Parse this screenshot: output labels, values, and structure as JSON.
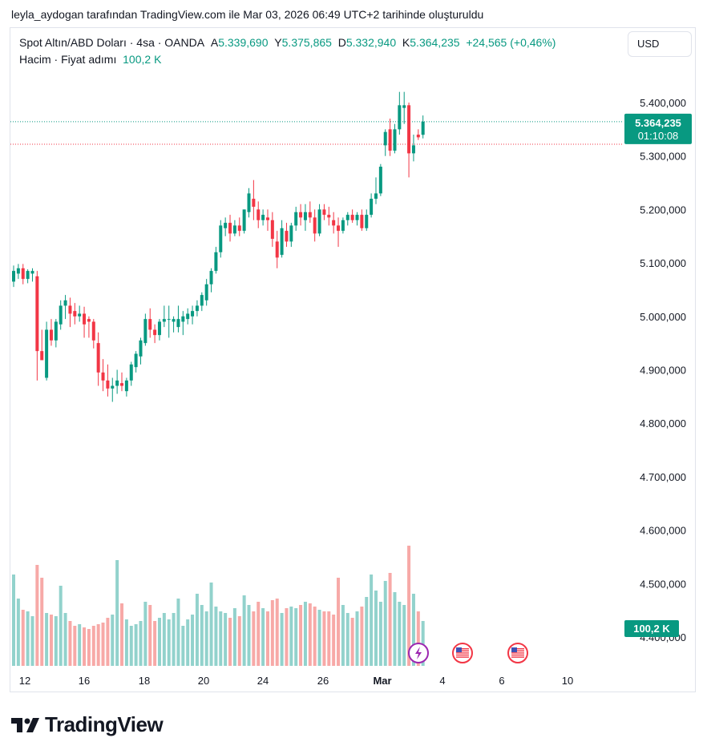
{
  "attribution": "leyla_aydogan tarafından TradingView.com ile Mar 03, 2026 06:49 UTC+2 tarihinde oluşturuldu",
  "legend": {
    "symbol": "Spot Altın/ABD Doları · 4sa · OANDA",
    "open_label": "A",
    "open_value": "5.339,690",
    "high_label": "Y",
    "high_value": "5.375,865",
    "low_label": "D",
    "low_value": "5.332,940",
    "close_label": "K",
    "close_value": "5.364,235",
    "change": "+24,565 (+0,46%)",
    "volume_label": "Hacim · Fiyat adımı",
    "volume_value": "100,2 K"
  },
  "currency_button": "USD",
  "price_tag": {
    "price": "5.364,235",
    "countdown": "01:10:08"
  },
  "volume_tag": "100,2 K",
  "brand": "TradingView",
  "event_icons": [
    "lightning-icon",
    "us-flag-icon",
    "us-flag-icon"
  ],
  "colors": {
    "up": "#089981",
    "down": "#f23645",
    "vol_up": "#92d2cc",
    "vol_down": "#f7a9a7"
  },
  "chart_data": {
    "type": "candlestick",
    "x_tick_labels": [
      "12",
      "16",
      "18",
      "20",
      "24",
      "26",
      "Mar",
      "4",
      "6",
      "10"
    ],
    "y_tick_labels": [
      "5.400,000",
      "5.300,000",
      "5.200,000",
      "5.100,000",
      "5.000,000",
      "4.900,000",
      "4.800,000",
      "4.700,000",
      "4.600,000",
      "4.500,000",
      "4.400,000"
    ],
    "ylim": [
      4350,
      5510
    ],
    "last_price": 5364.235,
    "prior_close_line": 5322,
    "candles": [
      {
        "o": 5065,
        "h": 5095,
        "l": 5055,
        "c": 5085,
        "v": 0.57
      },
      {
        "o": 5080,
        "h": 5098,
        "l": 5070,
        "c": 5090,
        "v": 0.42
      },
      {
        "o": 5090,
        "h": 5098,
        "l": 5060,
        "c": 5070,
        "v": 0.35
      },
      {
        "o": 5070,
        "h": 5088,
        "l": 5062,
        "c": 5085,
        "v": 0.34
      },
      {
        "o": 5080,
        "h": 5090,
        "l": 5065,
        "c": 5085,
        "v": 0.31
      },
      {
        "o": 5075,
        "h": 5085,
        "l": 4880,
        "c": 4935,
        "v": 0.63
      },
      {
        "o": 4935,
        "h": 4975,
        "l": 4918,
        "c": 4918,
        "v": 0.55
      },
      {
        "o": 4885,
        "h": 4990,
        "l": 4880,
        "c": 4975,
        "v": 0.33
      },
      {
        "o": 4975,
        "h": 4995,
        "l": 4945,
        "c": 4955,
        "v": 0.32
      },
      {
        "o": 4955,
        "h": 4995,
        "l": 4942,
        "c": 4990,
        "v": 0.31
      },
      {
        "o": 4985,
        "h": 5030,
        "l": 4975,
        "c": 5020,
        "v": 0.5
      },
      {
        "o": 5020,
        "h": 5040,
        "l": 4995,
        "c": 5030,
        "v": 0.33
      },
      {
        "o": 5020,
        "h": 5035,
        "l": 4980,
        "c": 5005,
        "v": 0.28
      },
      {
        "o": 5010,
        "h": 5025,
        "l": 4985,
        "c": 5000,
        "v": 0.25
      },
      {
        "o": 5000,
        "h": 5020,
        "l": 4990,
        "c": 5005,
        "v": 0.26
      },
      {
        "o": 5005,
        "h": 5018,
        "l": 4960,
        "c": 4985,
        "v": 0.24
      },
      {
        "o": 4995,
        "h": 5000,
        "l": 4960,
        "c": 4990,
        "v": 0.23
      },
      {
        "o": 4990,
        "h": 4995,
        "l": 4940,
        "c": 4955,
        "v": 0.25
      },
      {
        "o": 4950,
        "h": 4970,
        "l": 4870,
        "c": 4895,
        "v": 0.26
      },
      {
        "o": 4895,
        "h": 4920,
        "l": 4860,
        "c": 4880,
        "v": 0.27
      },
      {
        "o": 4880,
        "h": 4910,
        "l": 4850,
        "c": 4865,
        "v": 0.3
      },
      {
        "o": 4865,
        "h": 4885,
        "l": 4840,
        "c": 4870,
        "v": 0.32
      },
      {
        "o": 4870,
        "h": 4900,
        "l": 4855,
        "c": 4880,
        "v": 0.66
      },
      {
        "o": 4875,
        "h": 4895,
        "l": 4860,
        "c": 4870,
        "v": 0.39
      },
      {
        "o": 4860,
        "h": 4885,
        "l": 4850,
        "c": 4880,
        "v": 0.29
      },
      {
        "o": 4880,
        "h": 4915,
        "l": 4870,
        "c": 4910,
        "v": 0.25
      },
      {
        "o": 4905,
        "h": 4935,
        "l": 4895,
        "c": 4930,
        "v": 0.26
      },
      {
        "o": 4925,
        "h": 4960,
        "l": 4910,
        "c": 4955,
        "v": 0.28
      },
      {
        "o": 4950,
        "h": 5005,
        "l": 4945,
        "c": 4995,
        "v": 0.4
      },
      {
        "o": 4995,
        "h": 5015,
        "l": 4960,
        "c": 4975,
        "v": 0.38
      },
      {
        "o": 4975,
        "h": 4985,
        "l": 4950,
        "c": 4965,
        "v": 0.28
      },
      {
        "o": 4965,
        "h": 4995,
        "l": 4955,
        "c": 4990,
        "v": 0.3
      },
      {
        "o": 4990,
        "h": 5020,
        "l": 4980,
        "c": 4995,
        "v": 0.33
      },
      {
        "o": 4995,
        "h": 5020,
        "l": 4960,
        "c": 4995,
        "v": 0.29
      },
      {
        "o": 4990,
        "h": 5000,
        "l": 4970,
        "c": 4995,
        "v": 0.33
      },
      {
        "o": 4980,
        "h": 5020,
        "l": 4970,
        "c": 4995,
        "v": 0.42
      },
      {
        "o": 4990,
        "h": 5010,
        "l": 4965,
        "c": 5000,
        "v": 0.25
      },
      {
        "o": 4995,
        "h": 5015,
        "l": 4985,
        "c": 5005,
        "v": 0.29
      },
      {
        "o": 5000,
        "h": 5020,
        "l": 4985,
        "c": 5010,
        "v": 0.32
      },
      {
        "o": 5010,
        "h": 5030,
        "l": 5000,
        "c": 5020,
        "v": 0.45
      },
      {
        "o": 5020,
        "h": 5045,
        "l": 5010,
        "c": 5040,
        "v": 0.38
      },
      {
        "o": 5030,
        "h": 5070,
        "l": 5020,
        "c": 5060,
        "v": 0.34
      },
      {
        "o": 5060,
        "h": 5090,
        "l": 5045,
        "c": 5085,
        "v": 0.52
      },
      {
        "o": 5085,
        "h": 5130,
        "l": 5080,
        "c": 5120,
        "v": 0.37
      },
      {
        "o": 5120,
        "h": 5180,
        "l": 5110,
        "c": 5170,
        "v": 0.34
      },
      {
        "o": 5165,
        "h": 5185,
        "l": 5150,
        "c": 5175,
        "v": 0.33
      },
      {
        "o": 5175,
        "h": 5190,
        "l": 5140,
        "c": 5155,
        "v": 0.3
      },
      {
        "o": 5155,
        "h": 5180,
        "l": 5150,
        "c": 5170,
        "v": 0.36
      },
      {
        "o": 5170,
        "h": 5185,
        "l": 5150,
        "c": 5160,
        "v": 0.31
      },
      {
        "o": 5160,
        "h": 5200,
        "l": 5155,
        "c": 5200,
        "v": 0.44
      },
      {
        "o": 5195,
        "h": 5240,
        "l": 5185,
        "c": 5230,
        "v": 0.38
      },
      {
        "o": 5220,
        "h": 5255,
        "l": 5180,
        "c": 5205,
        "v": 0.34
      },
      {
        "o": 5200,
        "h": 5215,
        "l": 5165,
        "c": 5180,
        "v": 0.4
      },
      {
        "o": 5180,
        "h": 5200,
        "l": 5170,
        "c": 5190,
        "v": 0.36
      },
      {
        "o": 5185,
        "h": 5200,
        "l": 5160,
        "c": 5180,
        "v": 0.34
      },
      {
        "o": 5180,
        "h": 5195,
        "l": 5130,
        "c": 5145,
        "v": 0.41
      },
      {
        "o": 5140,
        "h": 5160,
        "l": 5090,
        "c": 5110,
        "v": 0.42
      },
      {
        "o": 5115,
        "h": 5180,
        "l": 5110,
        "c": 5165,
        "v": 0.33
      },
      {
        "o": 5160,
        "h": 5175,
        "l": 5130,
        "c": 5140,
        "v": 0.36
      },
      {
        "o": 5140,
        "h": 5175,
        "l": 5130,
        "c": 5170,
        "v": 0.37
      },
      {
        "o": 5170,
        "h": 5205,
        "l": 5160,
        "c": 5195,
        "v": 0.36
      },
      {
        "o": 5195,
        "h": 5210,
        "l": 5170,
        "c": 5185,
        "v": 0.38
      },
      {
        "o": 5180,
        "h": 5210,
        "l": 5160,
        "c": 5195,
        "v": 0.4
      },
      {
        "o": 5195,
        "h": 5215,
        "l": 5175,
        "c": 5185,
        "v": 0.39
      },
      {
        "o": 5185,
        "h": 5200,
        "l": 5140,
        "c": 5155,
        "v": 0.37
      },
      {
        "o": 5155,
        "h": 5210,
        "l": 5150,
        "c": 5200,
        "v": 0.35
      },
      {
        "o": 5200,
        "h": 5210,
        "l": 5180,
        "c": 5190,
        "v": 0.34
      },
      {
        "o": 5190,
        "h": 5205,
        "l": 5170,
        "c": 5185,
        "v": 0.34
      },
      {
        "o": 5180,
        "h": 5195,
        "l": 5155,
        "c": 5170,
        "v": 0.32
      },
      {
        "o": 5170,
        "h": 5185,
        "l": 5130,
        "c": 5160,
        "v": 0.55
      },
      {
        "o": 5160,
        "h": 5185,
        "l": 5155,
        "c": 5180,
        "v": 0.38
      },
      {
        "o": 5180,
        "h": 5195,
        "l": 5170,
        "c": 5190,
        "v": 0.33
      },
      {
        "o": 5190,
        "h": 5200,
        "l": 5175,
        "c": 5180,
        "v": 0.3
      },
      {
        "o": 5180,
        "h": 5195,
        "l": 5170,
        "c": 5190,
        "v": 0.34
      },
      {
        "o": 5190,
        "h": 5200,
        "l": 5160,
        "c": 5165,
        "v": 0.37
      },
      {
        "o": 5165,
        "h": 5200,
        "l": 5160,
        "c": 5190,
        "v": 0.43
      },
      {
        "o": 5190,
        "h": 5230,
        "l": 5185,
        "c": 5220,
        "v": 0.57
      },
      {
        "o": 5220,
        "h": 5260,
        "l": 5210,
        "c": 5230,
        "v": 0.47
      },
      {
        "o": 5230,
        "h": 5285,
        "l": 5225,
        "c": 5280,
        "v": 0.4
      },
      {
        "o": 5320,
        "h": 5350,
        "l": 5300,
        "c": 5345,
        "v": 0.53
      },
      {
        "o": 5350,
        "h": 5370,
        "l": 5300,
        "c": 5310,
        "v": 0.58
      },
      {
        "o": 5310,
        "h": 5360,
        "l": 5305,
        "c": 5350,
        "v": 0.46
      },
      {
        "o": 5350,
        "h": 5420,
        "l": 5340,
        "c": 5395,
        "v": 0.4
      },
      {
        "o": 5390,
        "h": 5420,
        "l": 5360,
        "c": 5395,
        "v": 0.38
      },
      {
        "o": 5395,
        "h": 5400,
        "l": 5260,
        "c": 5305,
        "v": 0.75
      },
      {
        "o": 5305,
        "h": 5340,
        "l": 5290,
        "c": 5320,
        "v": 0.45
      },
      {
        "o": 5340,
        "h": 5350,
        "l": 5330,
        "c": 5335,
        "v": 0.34
      },
      {
        "o": 5339.69,
        "h": 5375.865,
        "l": 5332.94,
        "c": 5364.235,
        "v": 0.28
      }
    ]
  }
}
